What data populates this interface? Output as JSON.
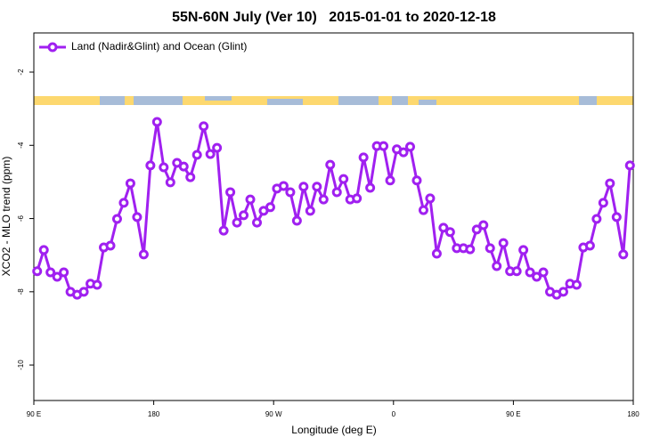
{
  "chart_data": {
    "type": "line",
    "title": "55N-60N July (Ver 10)   2015-01-01 to 2020-12-18",
    "xlabel": "Longitude (deg E)",
    "ylabel": "XCO2 - MLO trend (ppm)",
    "legend": "upper left",
    "x": [
      92.5,
      97.5,
      102.5,
      107.5,
      112.5,
      117.5,
      122.5,
      127.5,
      132.5,
      137.5,
      142.5,
      147.5,
      152.5,
      157.5,
      162.5,
      167.5,
      172.5,
      177.5,
      182.5,
      187.5,
      192.5,
      197.5,
      202.5,
      207.5,
      212.5,
      217.5,
      222.5,
      227.5,
      232.5,
      237.5,
      242.5,
      247.5,
      252.5,
      257.5,
      262.5,
      267.5,
      272.5,
      277.5,
      282.5,
      287.5,
      292.5,
      297.5,
      302.5,
      307.5,
      312.5,
      317.5,
      322.5,
      327.5,
      332.5,
      337.5,
      342.5,
      347.5,
      352.5,
      357.5,
      362.5,
      367.5,
      372.5,
      377.5,
      382.5,
      387.5,
      392.5,
      397.5,
      402.5,
      407.5,
      412.5,
      417.5,
      422.5,
      427.5,
      432.5,
      437.5,
      442.5,
      447.5,
      452.5,
      457.5,
      462.5,
      467.5,
      472.5,
      477.5,
      482.5,
      487.5,
      492.5,
      497.5,
      502.5,
      507.5,
      512.5,
      517.5,
      522.5,
      527.5,
      532.5,
      537.5
    ],
    "series": [
      {
        "name": "Land (Nadir&Glint) and Ocean (Glint)",
        "color": "#a020f0",
        "values": [
          -7.44,
          -6.86,
          -7.47,
          -7.59,
          -7.47,
          -8.0,
          -8.08,
          -8.0,
          -7.78,
          -7.81,
          -6.79,
          -6.74,
          -6.01,
          -5.57,
          -5.04,
          -5.96,
          -6.98,
          -4.55,
          -3.36,
          -4.6,
          -5.01,
          -4.48,
          -4.58,
          -4.87,
          -4.26,
          -3.48,
          -4.24,
          -4.07,
          -6.33,
          -5.28,
          -6.11,
          -5.91,
          -5.48,
          -6.11,
          -5.79,
          -5.69,
          -5.18,
          -5.11,
          -5.28,
          -6.06,
          -5.13,
          -5.79,
          -5.13,
          -5.48,
          -4.53,
          -5.28,
          -4.92,
          -5.48,
          -5.45,
          -4.33,
          -5.16,
          -4.02,
          -4.02,
          -4.96,
          -4.11,
          -4.19,
          -4.04,
          -4.96,
          -5.77,
          -5.45,
          -6.96,
          -6.25,
          -6.37,
          -6.81,
          -6.81,
          -6.84,
          -6.3,
          -6.18,
          -6.81,
          -7.3,
          -6.67,
          -7.44,
          -7.44,
          -6.86,
          -7.47,
          -7.59,
          -7.47,
          -8.0,
          -8.08,
          -8.0,
          -7.78,
          -7.81,
          -6.79,
          -6.74,
          -6.01,
          -5.57,
          -5.04,
          -5.96,
          -6.98,
          -4.55
        ]
      }
    ],
    "xlim": [
      90,
      540
    ],
    "xticks": [
      {
        "value": 90,
        "label": "90 E"
      },
      180,
      {
        "value": 270,
        "label": "90 W"
      },
      {
        "value": 360,
        "label": "0"
      },
      {
        "value": 450,
        "label": "90 E"
      },
      {
        "value": 540,
        "label": "180"
      }
    ],
    "ylim": [
      -10.97,
      -0.93
    ],
    "yticks": [
      -10,
      -8,
      -6,
      -4,
      -2
    ]
  }
}
